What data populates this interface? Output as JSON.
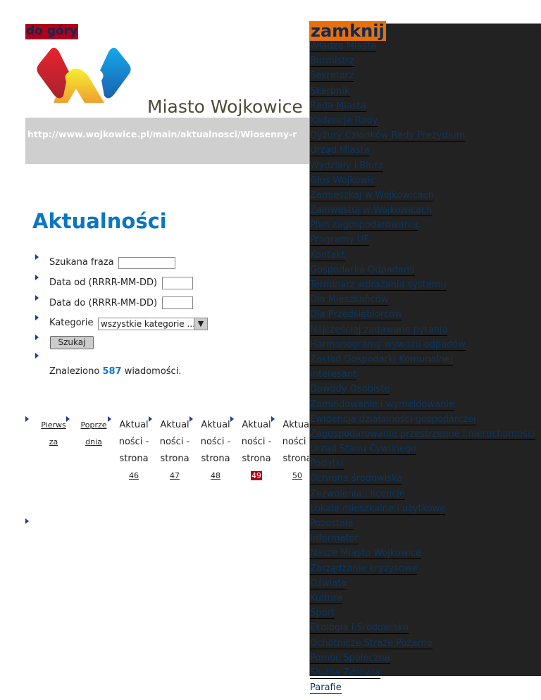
{
  "top_link": "do góry",
  "close_label": "zamknij",
  "site_title": "Miasto Wojkowice",
  "url": "http://www.wojkowice.pl/main/aktualnosci/Wiosenny-r",
  "page_heading": "Aktualności",
  "search": {
    "phrase_label": "Szukana fraza",
    "phrase_value": "",
    "from_label": "Data od (RRRR-MM-DD)",
    "from_value": "",
    "to_label": "Data do (RRRR-MM-DD)",
    "to_value": "",
    "category_label": "Kategorie",
    "category_value": "wszystkie kategorie ...",
    "submit_label": "Szukaj"
  },
  "results": {
    "prefix": "Znaleziono",
    "count": "587",
    "suffix": "wiadomości."
  },
  "pagination": {
    "first": "Pierwsza",
    "prev": "Poprzednia",
    "page_label": "Aktualności - strona",
    "pages": [
      "46",
      "47",
      "48",
      "49",
      "50"
    ],
    "current": "49"
  },
  "menu": [
    "Władze Miasta",
    "Burmistrz",
    "Sekretarz",
    "Skarbnik",
    "Rada Miasta",
    "Kadencje Rady",
    "Dyżury Członków Rady Prezydium",
    "Urząd Miasta",
    "Wydziały i Biura",
    "Głos Wojkowic",
    "Zamieszkaj w Wojkowicach",
    "Zainwestuj w Wojkowicach",
    "Plan zagospodarowania",
    "Programy UE",
    "Kontakt",
    "Gospodarka Odpadami",
    "Terminarz wdrażania systemu",
    "Dla Mieszkańców",
    "Dla Przedsiębiorców",
    "Najczęściej zadawane pytania",
    "Harmonogramy wywozu odpadów",
    "Zakład Gospodarki Komunalnej",
    "Interesant",
    "Dowody Osobiste",
    "Zameldowanie i wymeldowanie",
    "Ewidencja działalności gospodarczej",
    "Zagospodarowanie przestrzenne i nieruchomości",
    "Urząd Stanu Cywilnego",
    "Podatki",
    "Ochrona środowiska",
    "Zezwolenia i licencje",
    "Lokale mieszkalne i użytkowe",
    "Pozostałe",
    "Informator",
    "Nasze Miasto Wojkowice",
    "Zarządzanie kryzysowe",
    "Oświata",
    "Kultura",
    "Sport",
    "Ekologia i Środowisko",
    "Ochotnicze Straże Pożarne",
    "Pomoc Społeczna",
    "Służba Zdrowia",
    "Parafie"
  ],
  "colors": {
    "accent": "#0c76c0",
    "current_page": "#b0001a",
    "close_bg": "#e8700a",
    "panel_bg": "#222222"
  }
}
